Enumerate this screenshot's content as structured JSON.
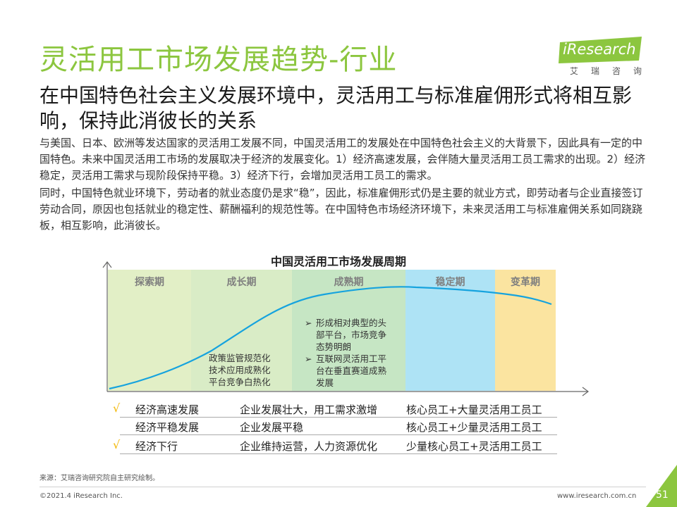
{
  "header": {
    "title": "灵活用工市场发展趋势-行业",
    "subtitle": "在中国特色社会主义发展环境中，灵活用工与标准雇佣形式将相互影响，保持此消彼长的关系"
  },
  "logo": {
    "word": "iResearch",
    "sub": "艾瑞咨询"
  },
  "body": {
    "paragraph1": "与美国、日本、欧洲等发达国家的灵活用工发展不同，中国灵活用工的发展处在中国特色社会主义的大背景下，因此具有一定的中国特色。未来中国灵活用工市场的发展取决于经济的发展变化。1）经济高速发展，会伴随大量灵活用工员工需求的出现。2）经济稳定，灵活用工需求与现阶段保持平稳。3）经济下行，会增加灵活用工员工的需求。",
    "paragraph2": "同时，中国特色就业环境下，劳动者的就业态度仍是求“稳”，因此，标准雇佣形式仍是主要的就业方式，即劳动者与企业直接签订劳动合同，原因也包括就业的稳定性、薪酬福利的规范性等。在中国特色市场经济环境下，未来灵活用工与标准雇佣关系如同跷跷板，相互影响，此消彼长。"
  },
  "chart_data": {
    "type": "line",
    "title": "中国灵活用工市场发展周期",
    "phases": [
      {
        "label": "探索期",
        "color": "#e2efc6"
      },
      {
        "label": "成长期",
        "color": "#d9ecc6"
      },
      {
        "label": "成熟期",
        "color": "#c6e6c4"
      },
      {
        "label": "稳定期",
        "color": "#aee3f5"
      },
      {
        "label": "变革期",
        "color": "#fbe4a0"
      }
    ],
    "curve_color": "#16a3de",
    "notes": {
      "growth": [
        "政策监管规范化",
        "技术应用成熟化",
        "平台竞争白热化"
      ],
      "mature": [
        {
          "bullet": "➢",
          "lines": [
            "形成相对典型的头",
            "部平台，市场竞争",
            "态势明朗"
          ]
        },
        {
          "bullet": "➢",
          "lines": [
            "互联网灵活用工平",
            "台在垂直赛道成熟",
            "发展"
          ]
        }
      ]
    },
    "xlabel": "",
    "ylabel": ""
  },
  "scenarios": [
    {
      "check": "√",
      "economy": "经济高速发展",
      "enterprise": "企业发展壮大，用工需求激增",
      "staffing": "核心员工+大量灵活用工员工"
    },
    {
      "check": "",
      "economy": "经济平稳发展",
      "enterprise": "企业发展平稳",
      "staffing": "核心员工+少量灵活用工员工"
    },
    {
      "check": "√",
      "economy": "经济下行",
      "enterprise": "企业维持运营，人力资源优化",
      "staffing": "少量核心员工+灵活用工员工"
    }
  ],
  "footer": {
    "source": "来源：艾瑞咨询研究院自主研究绘制。",
    "copyright": "©2021.4 iResearch Inc.",
    "site": "www.iresearch.com.cn",
    "page": "51"
  },
  "colors": {
    "title_green": "#8cc63f",
    "check_yellow": "#f2b705"
  }
}
